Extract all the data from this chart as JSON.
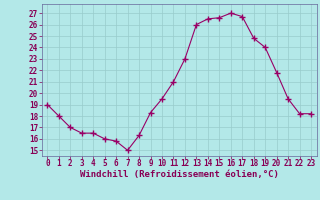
{
  "x": [
    0,
    1,
    2,
    3,
    4,
    5,
    6,
    7,
    8,
    9,
    10,
    11,
    12,
    13,
    14,
    15,
    16,
    17,
    18,
    19,
    20,
    21,
    22,
    23
  ],
  "y": [
    19,
    18,
    17,
    16.5,
    16.5,
    16,
    15.8,
    15,
    16.3,
    18.3,
    19.5,
    21,
    23,
    26,
    26.5,
    26.6,
    27,
    26.7,
    24.8,
    24,
    21.8,
    19.5,
    18.2,
    18.2
  ],
  "line_color": "#990066",
  "marker": "+",
  "markersize": 4,
  "linewidth": 0.8,
  "bg_color": "#b3e8e8",
  "grid_color": "#99cccc",
  "xlabel": "Windchill (Refroidissement éolien,°C)",
  "xlabel_fontsize": 6.5,
  "ytick_labels": [
    "15",
    "16",
    "17",
    "18",
    "19",
    "20",
    "21",
    "22",
    "23",
    "24",
    "25",
    "26",
    "27"
  ],
  "ytick_vals": [
    15,
    16,
    17,
    18,
    19,
    20,
    21,
    22,
    23,
    24,
    25,
    26,
    27
  ],
  "xtick_vals": [
    0,
    1,
    2,
    3,
    4,
    5,
    6,
    7,
    8,
    9,
    10,
    11,
    12,
    13,
    14,
    15,
    16,
    17,
    18,
    19,
    20,
    21,
    22,
    23
  ],
  "ylim": [
    14.5,
    27.8
  ],
  "xlim": [
    -0.5,
    23.5
  ],
  "tick_fontsize": 5.5,
  "tick_color": "#880055"
}
